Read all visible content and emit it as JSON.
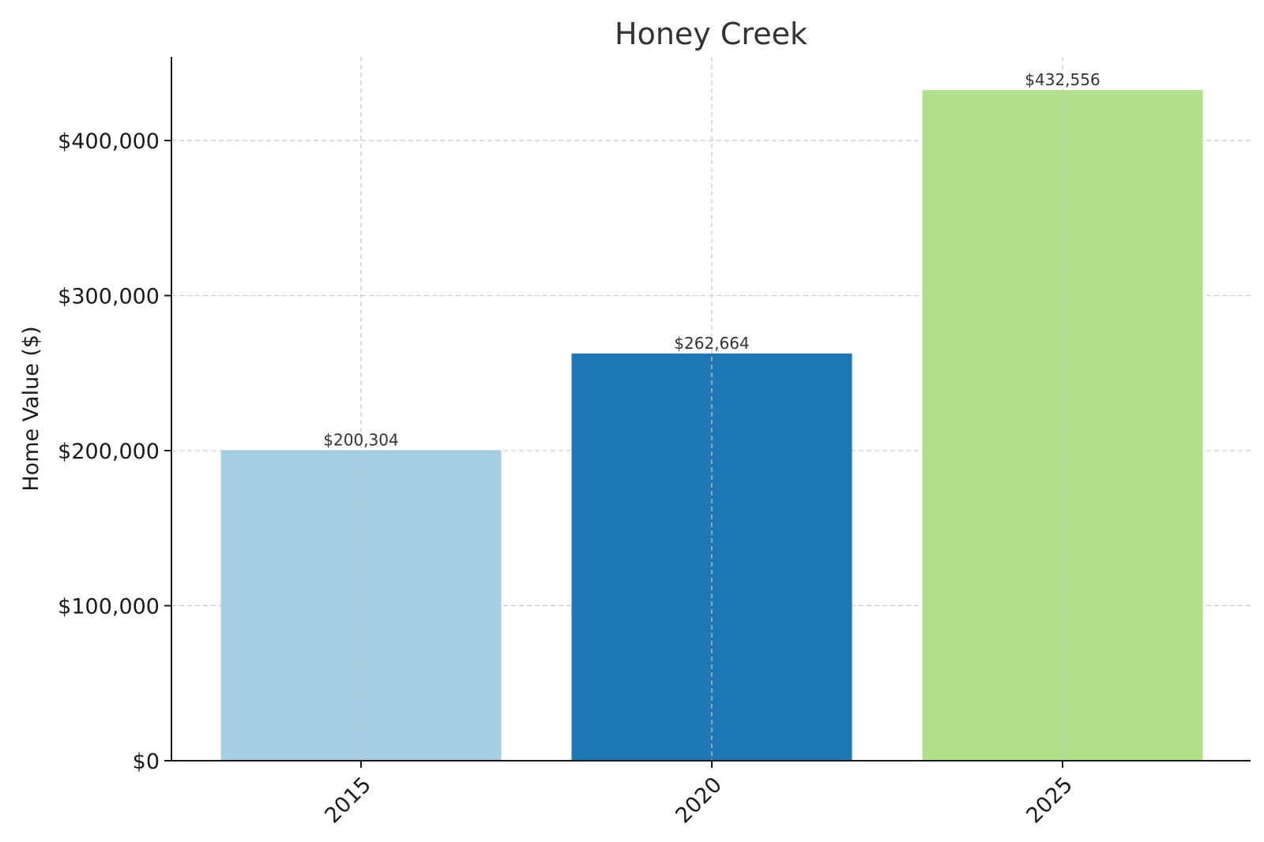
{
  "chart_data": {
    "type": "bar",
    "title": "Honey Creek",
    "xlabel": "",
    "ylabel": "Home Value ($)",
    "categories": [
      "2015",
      "2020",
      "2025"
    ],
    "values": [
      200304,
      262664,
      432556
    ],
    "value_labels": [
      "$200,304",
      "$262,664",
      "$432,556"
    ],
    "colors": [
      "#a6cee3",
      "#1f78b4",
      "#b2df8a"
    ],
    "ylim": [
      0,
      454000
    ],
    "yticks": [
      0,
      100000,
      200000,
      300000,
      400000
    ],
    "ytick_labels": [
      "$0",
      "$100,000",
      "$200,000",
      "$300,000",
      "$400,000"
    ],
    "grid": true,
    "legend": "none"
  }
}
